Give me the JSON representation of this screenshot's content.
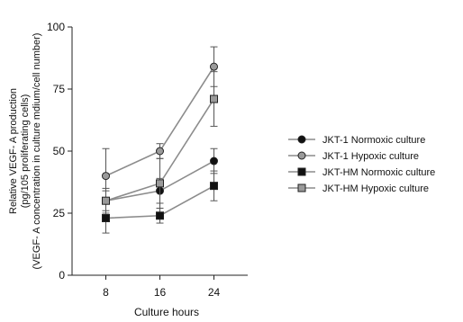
{
  "chart_data": {
    "type": "line",
    "xlabel": "Culture hours",
    "ylabel_lines": [
      "Relative VEGF- A production",
      "(pg/105 proliferating cells)",
      "(VEGF- A concentration in culture mdium/cell number)"
    ],
    "categories": [
      "8",
      "16",
      "24"
    ],
    "x": [
      8,
      16,
      24
    ],
    "xlim": [
      3,
      29
    ],
    "ylim": [
      0,
      100
    ],
    "yticks": [
      "0",
      "25",
      "50",
      "75",
      "100"
    ],
    "ytick_values": [
      0,
      25,
      50,
      75,
      100
    ],
    "grid": false,
    "legend_position": "right",
    "series": [
      {
        "name": "JKT-1 Normoxic culture",
        "marker": "circle",
        "fill": "#111111",
        "values": [
          30,
          34,
          46
        ],
        "err": [
          4,
          5,
          5
        ]
      },
      {
        "name": "JKT-1 Hypoxic culture",
        "marker": "circle",
        "fill": "#9a9a9a",
        "values": [
          40,
          50,
          84
        ],
        "err": [
          11,
          3,
          8
        ]
      },
      {
        "name": "JKT-HM Normoxic culture",
        "marker": "square",
        "fill": "#111111",
        "values": [
          23,
          24,
          36
        ],
        "err": [
          6,
          3,
          6
        ]
      },
      {
        "name": "JKT-HM Hypoxic culture",
        "marker": "square",
        "fill": "#9a9a9a",
        "values": [
          30,
          37,
          71
        ],
        "err": [
          5,
          10,
          11
        ]
      }
    ]
  }
}
